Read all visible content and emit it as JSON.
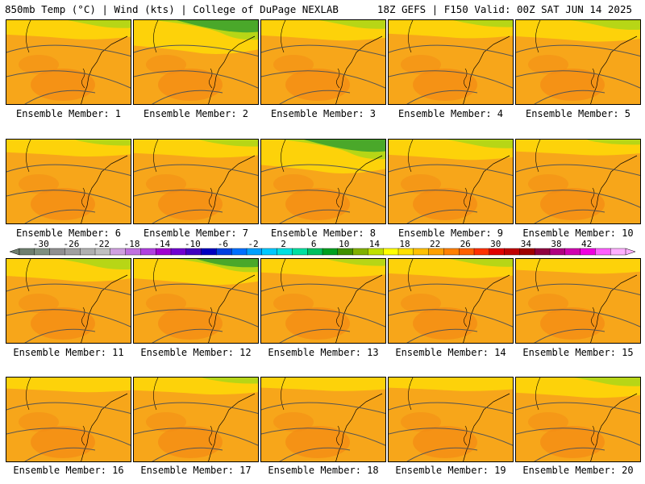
{
  "header": {
    "left": "850mb Temp (°C) | Wind (kts) | College of DuPage NEXLAB",
    "right": "18Z GEFS | F150 Valid: 00Z SAT JUN 14 2025"
  },
  "panels": [
    {
      "label": "Ensemble Member: 1",
      "green": 0.25
    },
    {
      "label": "Ensemble Member: 2",
      "green": 0.9
    },
    {
      "label": "Ensemble Member: 3",
      "green": 0.3
    },
    {
      "label": "Ensemble Member: 4",
      "green": 0.2
    },
    {
      "label": "Ensemble Member: 5",
      "green": 0.35
    },
    {
      "label": "Ensemble Member: 6",
      "green": 0.15
    },
    {
      "label": "Ensemble Member: 7",
      "green": 0.2
    },
    {
      "label": "Ensemble Member: 8",
      "green": 0.9
    },
    {
      "label": "Ensemble Member: 9",
      "green": 0.3
    },
    {
      "label": "Ensemble Member: 10",
      "green": 0.1
    },
    {
      "label": "Ensemble Member: 11",
      "green": 0.4
    },
    {
      "label": "Ensemble Member: 12",
      "green": 0.55
    },
    {
      "label": "Ensemble Member: 13",
      "green": 0.2
    },
    {
      "label": "Ensemble Member: 14",
      "green": 0.25
    },
    {
      "label": "Ensemble Member: 15",
      "green": 0.05
    },
    {
      "label": "Ensemble Member: 16",
      "green": 0.05
    },
    {
      "label": "Ensemble Member: 17",
      "green": 0.15
    },
    {
      "label": "Ensemble Member: 18",
      "green": 0.0
    },
    {
      "label": "Ensemble Member: 19",
      "green": 0.0
    },
    {
      "label": "Ensemble Member: 20",
      "green": 0.3
    }
  ],
  "colorbar": {
    "labels": [
      "-30",
      "-26",
      "-22",
      "-18",
      "-14",
      "-10",
      "-6",
      "-2",
      "2",
      "6",
      "10",
      "14",
      "18",
      "22",
      "26",
      "30",
      "34",
      "38",
      "42"
    ],
    "colors": [
      "#6f7f6f",
      "#7f8f7f",
      "#909090",
      "#a0a0a0",
      "#b0b0b0",
      "#c0c0c0",
      "#d0a0e0",
      "#c070e0",
      "#b040e0",
      "#a000d0",
      "#7000d0",
      "#4000c0",
      "#0000c0",
      "#0040e0",
      "#0070ff",
      "#00a0ff",
      "#00c8ff",
      "#00e0e0",
      "#00e0a0",
      "#00c060",
      "#00a020",
      "#409000",
      "#80b000",
      "#c0e000",
      "#ffff00",
      "#ffe000",
      "#ffc000",
      "#ffa000",
      "#ff8000",
      "#ff6000",
      "#ff3000",
      "#e00000",
      "#c00000",
      "#a00000",
      "#900040",
      "#b00080",
      "#d000b0",
      "#f000e0",
      "#ff60ff",
      "#ffb0ff"
    ]
  }
}
